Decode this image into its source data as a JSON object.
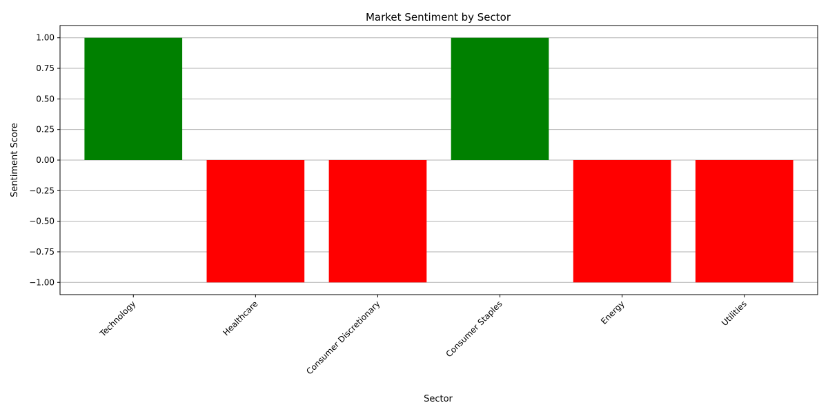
{
  "chart_data": {
    "type": "bar",
    "title": "Market Sentiment by Sector",
    "xlabel": "Sector",
    "ylabel": "Sentiment Score",
    "categories": [
      "Technology",
      "Healthcare",
      "Consumer Discretionary",
      "Consumer Staples",
      "Energy",
      "Utilities"
    ],
    "values": [
      1,
      -1,
      -1,
      1,
      -1,
      -1
    ],
    "ylim": [
      -1.1,
      1.1
    ],
    "yticks": [
      -1.0,
      -0.75,
      -0.5,
      -0.25,
      0.0,
      0.25,
      0.5,
      0.75,
      1.0
    ],
    "ytick_labels": [
      "−1.00",
      "−0.75",
      "−0.50",
      "−0.25",
      "0.00",
      "0.25",
      "0.50",
      "0.75",
      "1.00"
    ],
    "grid": "y",
    "colors": {
      "positive": "#008000",
      "negative": "#ff0000"
    }
  }
}
